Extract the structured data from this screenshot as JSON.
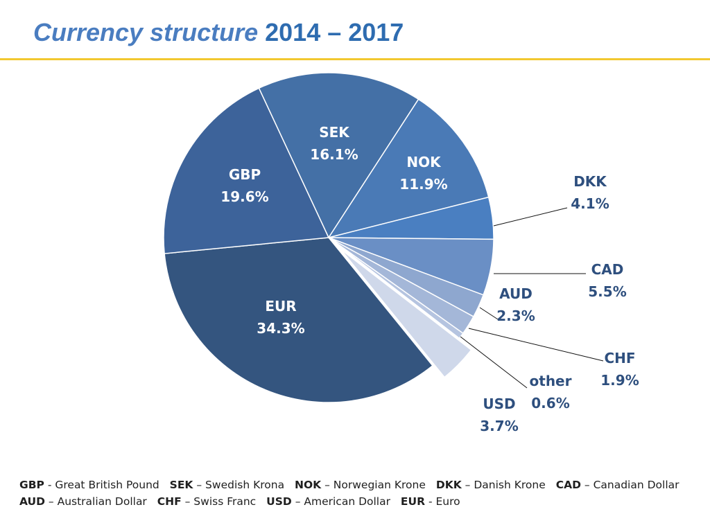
{
  "title": {
    "italic_part": "Currency structure",
    "years": "2014 – 2017"
  },
  "chart_data": {
    "type": "pie",
    "title": "Currency structure 2014 – 2017",
    "unit": "%",
    "slices": [
      {
        "key": "sek",
        "label": "SEK",
        "value": 16.1,
        "value_label": "16.1%",
        "color": "#4470a6",
        "text_color": "#ffffff"
      },
      {
        "key": "nok",
        "label": "NOK",
        "value": 11.9,
        "value_label": "11.9%",
        "color": "#4a7ab6",
        "text_color": "#ffffff"
      },
      {
        "key": "dkk",
        "label": "DKK",
        "value": 4.1,
        "value_label": "4.1%",
        "color": "#4a7fc1",
        "text_color": "#2e4f7e"
      },
      {
        "key": "cad",
        "label": "CAD",
        "value": 5.5,
        "value_label": "5.5%",
        "color": "#6a8fc5",
        "text_color": "#2e4f7e"
      },
      {
        "key": "aud",
        "label": "AUD",
        "value": 2.3,
        "value_label": "2.3%",
        "color": "#8ea7cf",
        "text_color": "#2e4f7e"
      },
      {
        "key": "chf",
        "label": "CHF",
        "value": 1.9,
        "value_label": "1.9%",
        "color": "#a4b7d8",
        "text_color": "#2e4f7e"
      },
      {
        "key": "other",
        "label": "other",
        "value": 0.6,
        "value_label": "0.6%",
        "color": "#b5c4e0",
        "text_color": "#2e4f7e"
      },
      {
        "key": "usd",
        "label": "USD",
        "value": 3.7,
        "value_label": "3.7%",
        "color": "#cfd8ea",
        "text_color": "#2e4f7e",
        "exploded": true
      },
      {
        "key": "eur",
        "label": "EUR",
        "value": 34.3,
        "value_label": "34.3%",
        "color": "#34557f",
        "text_color": "#ffffff"
      },
      {
        "key": "gbp",
        "label": "GBP",
        "value": 19.6,
        "value_label": "19.6%",
        "color": "#3d639a",
        "text_color": "#ffffff"
      }
    ]
  },
  "legend": {
    "rows": [
      [
        {
          "code": "GBP",
          "sep": " - ",
          "name": "Great British Pound"
        },
        {
          "code": "SEK",
          "sep": " – ",
          "name": "Swedish Krona"
        },
        {
          "code": "NOK",
          "sep": " – ",
          "name": "Norwegian Krone"
        },
        {
          "code": "DKK",
          "sep": " – ",
          "name": "Danish Krone"
        },
        {
          "code": "CAD",
          "sep": " – ",
          "name": "Canadian Dollar"
        }
      ],
      [
        {
          "code": "AUD",
          "sep": " – ",
          "name": "Australian Dollar"
        },
        {
          "code": "CHF",
          "sep": " – ",
          "name": "Swiss Franc"
        },
        {
          "code": "USD",
          "sep": " – ",
          "name": "American Dollar"
        },
        {
          "code": "EUR",
          "sep": " - ",
          "name": "Euro"
        }
      ]
    ]
  }
}
